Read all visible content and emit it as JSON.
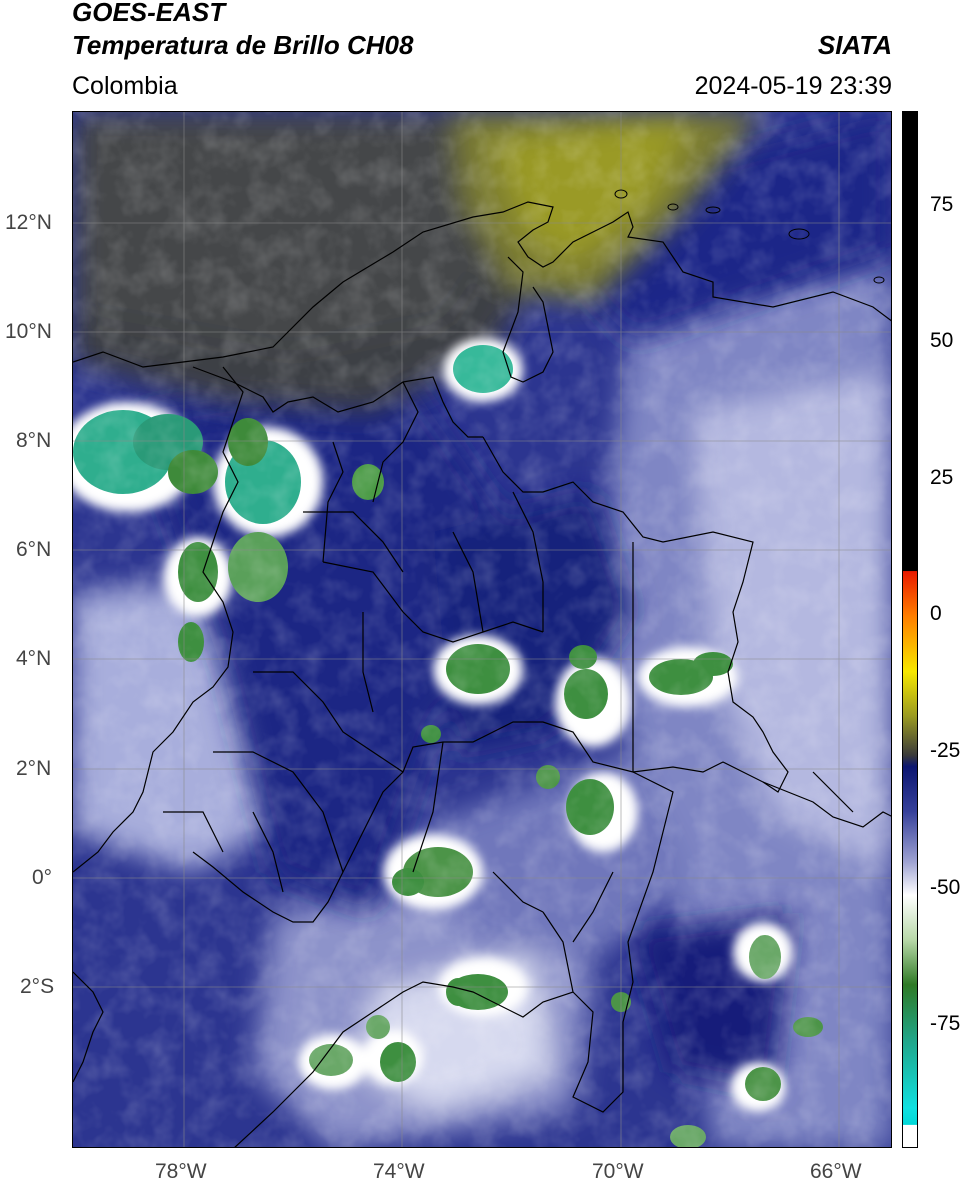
{
  "header": {
    "satellite": "GOES-EAST",
    "product": "Temperatura de Brillo CH08",
    "region": "Colombia",
    "source": "SIATA",
    "datetime": "2024-05-19 23:39"
  },
  "axes": {
    "lon_ticks": [
      "78°W",
      "74°W",
      "70°W",
      "66°W"
    ],
    "lat_ticks": [
      "12°N",
      "10°N",
      "8°N",
      "6°N",
      "4°N",
      "2°N",
      "0°",
      "2°S"
    ]
  },
  "colorbar": {
    "ticks": [
      "75",
      "50",
      "25",
      "0",
      "-25",
      "-50",
      "-75"
    ],
    "range": [
      -95,
      90
    ],
    "unit_hint": "",
    "stops": [
      {
        "value": 90,
        "color": "#000000"
      },
      {
        "value": 8,
        "color": "#000000"
      },
      {
        "value": 7.9,
        "color": "#e81a00"
      },
      {
        "value": 0,
        "color": "#ff7d00"
      },
      {
        "value": -10,
        "color": "#f7e800"
      },
      {
        "value": -18,
        "color": "#9a9a20"
      },
      {
        "value": -25,
        "color": "#3a3a3a"
      },
      {
        "value": -27,
        "color": "#0c1670"
      },
      {
        "value": -35,
        "color": "#36409a"
      },
      {
        "value": -44,
        "color": "#9ea2d2"
      },
      {
        "value": -50,
        "color": "#ffffff"
      },
      {
        "value": -58,
        "color": "#b8d8a8"
      },
      {
        "value": -66,
        "color": "#2f7a25"
      },
      {
        "value": -76,
        "color": "#20a68a"
      },
      {
        "value": -88,
        "color": "#10e0e0"
      },
      {
        "value": -91,
        "color": "#00d8d8"
      },
      {
        "value": -91.1,
        "color": "#ffffff"
      },
      {
        "value": -95,
        "color": "#ffffff"
      }
    ]
  },
  "colors": {
    "background_blue": "#2c3590",
    "deep_blue": "#0f1a78",
    "dry_olive": "#8f902a",
    "dry_gray": "#3e4044",
    "grid": "#8a8a8a"
  }
}
